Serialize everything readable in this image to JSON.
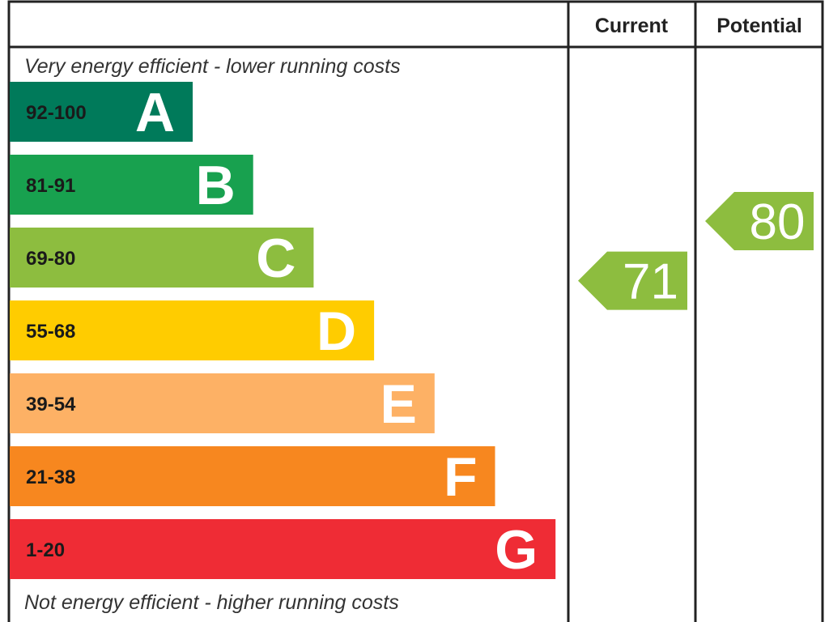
{
  "chart_data": {
    "type": "bar",
    "header": {
      "current": "Current",
      "potential": "Potential"
    },
    "top_caption": "Very energy efficient - lower running costs",
    "bottom_caption": "Not energy efficient - higher running costs",
    "bands": [
      {
        "letter": "A",
        "range": "92-100",
        "color": "#007a5a"
      },
      {
        "letter": "B",
        "range": "81-91",
        "color": "#18a14f"
      },
      {
        "letter": "C",
        "range": "69-80",
        "color": "#8dbd3f"
      },
      {
        "letter": "D",
        "range": "55-68",
        "color": "#ffcc00"
      },
      {
        "letter": "E",
        "range": "39-54",
        "color": "#fdb165"
      },
      {
        "letter": "F",
        "range": "21-38",
        "color": "#f7871f"
      },
      {
        "letter": "G",
        "range": "1-20",
        "color": "#ef2c35"
      }
    ],
    "ratings": [
      {
        "name": "current",
        "value": 71,
        "label": "71",
        "band": "C",
        "color": "#8dbd3f"
      },
      {
        "name": "potential",
        "value": 80,
        "label": "80",
        "band": "C",
        "color": "#8dbd3f"
      }
    ]
  }
}
